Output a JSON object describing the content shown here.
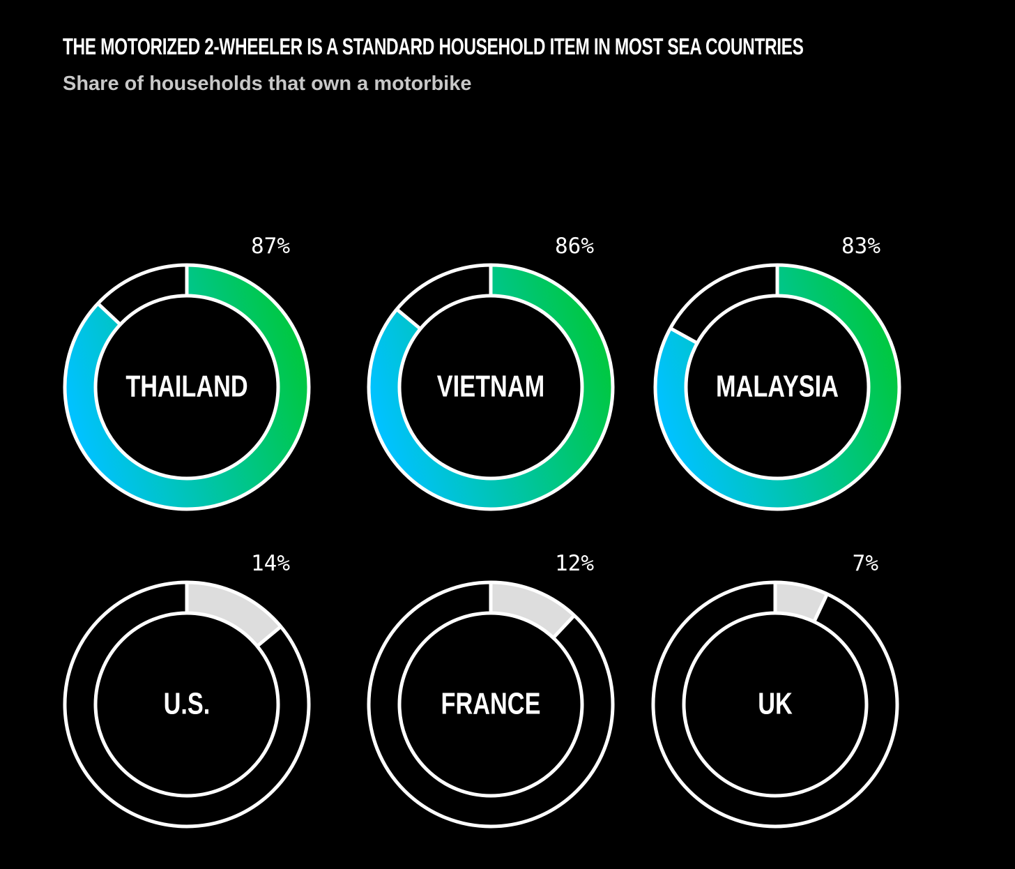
{
  "chart_data": {
    "type": "donut",
    "title": "THE MOTORIZED 2-WHEELER IS A STANDARD HOUSEHOLD ITEM IN MOST SEA COUNTRIES",
    "subtitle": "Share of households that own a motorbike",
    "categories": [
      "THAILAND",
      "VIETNAM",
      "MALAYSIA",
      "U.S.",
      "FRANCE",
      "UK"
    ],
    "values": [
      87,
      86,
      83,
      14,
      12,
      7
    ],
    "value_labels": [
      "87%",
      "86%",
      "83%",
      "14%",
      "12%",
      "7%"
    ],
    "value_max": 100,
    "colors": {
      "sea_gradient_start": "#00c2ff",
      "sea_gradient_end": "#00c832",
      "other_fill": "#dddddd",
      "ring_outline": "#ffffff",
      "background": "#000000"
    }
  }
}
